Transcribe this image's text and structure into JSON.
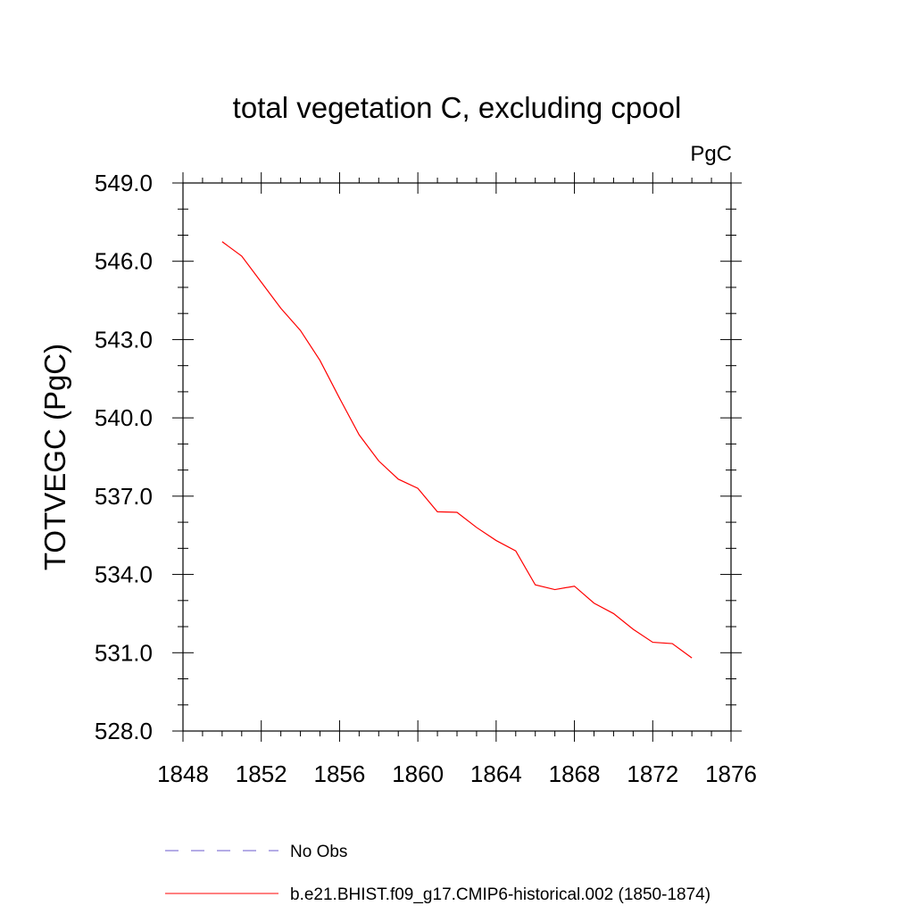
{
  "chart_data": {
    "type": "line",
    "title": "total vegetation C, excluding cpool",
    "units_label": "PgC",
    "ylabel": "TOTVEGC  (PgC)",
    "xlabel": "",
    "xlim": [
      1848,
      1876
    ],
    "ylim": [
      528.0,
      549.0
    ],
    "xticks": [
      1848,
      1852,
      1856,
      1860,
      1864,
      1868,
      1872,
      1876
    ],
    "yticks": [
      "549.0",
      "546.0",
      "543.0",
      "540.0",
      "537.0",
      "534.0",
      "531.0",
      "528.0"
    ],
    "grid": false,
    "legend_position": "bottom",
    "series": [
      {
        "name": "b.e21.BHIST.f09_g17.CMIP6-historical.002 (1850-1874)",
        "color": "#ff0000",
        "style": "solid",
        "x": [
          1850,
          1851,
          1852,
          1853,
          1854,
          1855,
          1856,
          1857,
          1858,
          1859,
          1860,
          1861,
          1862,
          1863,
          1864,
          1865,
          1866,
          1867,
          1868,
          1869,
          1870,
          1871,
          1872,
          1873,
          1874
        ],
        "y": [
          546.75,
          546.2,
          545.2,
          544.2,
          543.35,
          542.2,
          540.75,
          539.35,
          538.35,
          537.65,
          537.3,
          536.4,
          536.38,
          535.8,
          535.3,
          534.9,
          533.6,
          533.42,
          533.55,
          532.9,
          532.5,
          531.9,
          531.4,
          531.35,
          530.8
        ]
      }
    ],
    "legend": [
      {
        "label": "No Obs",
        "color": "#6a5acd",
        "style": "dashed"
      },
      {
        "label": "b.e21.BHIST.f09_g17.CMIP6-historical.002 (1850-1874)",
        "color": "#ff0000",
        "style": "solid"
      }
    ]
  }
}
